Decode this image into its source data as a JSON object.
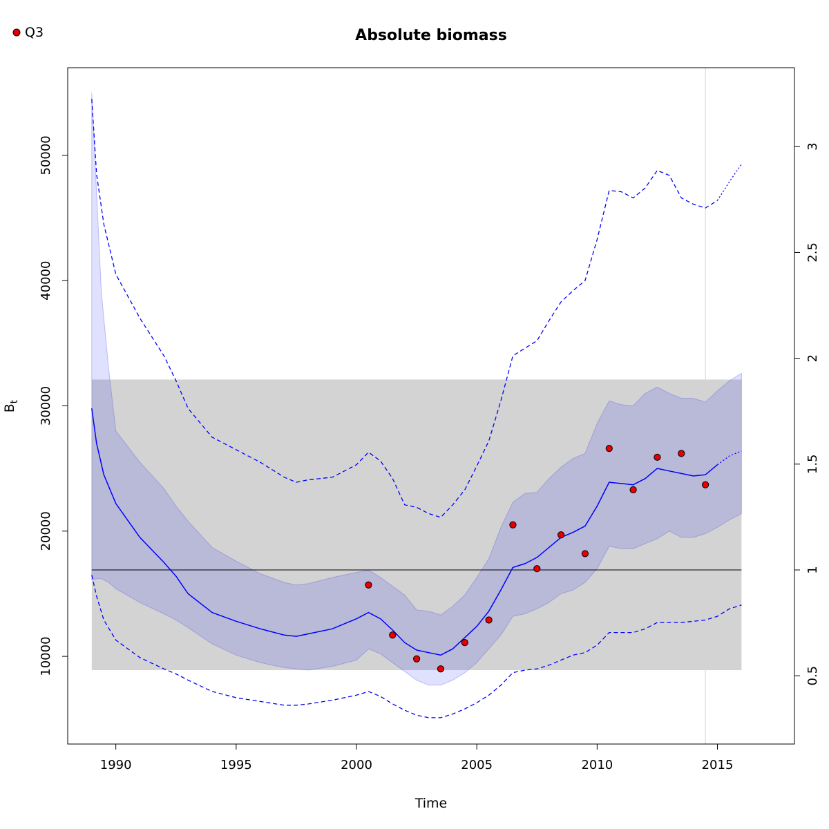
{
  "chart_data": {
    "type": "line",
    "title": "Absolute biomass",
    "xlabel": "Time",
    "ylabel": "B",
    "ylabel_subscript": "t",
    "xlim": [
      1988.0,
      2018.2
    ],
    "ylim": [
      3000,
      57000
    ],
    "xticks": [
      1990,
      1995,
      2000,
      2005,
      2010,
      2015
    ],
    "yticks": [
      10000,
      20000,
      30000,
      40000,
      50000
    ],
    "secondary_axis": {
      "position": "right",
      "reference_value": 16900,
      "ticks": [
        0.5,
        1,
        1.5,
        2,
        2.5,
        3
      ],
      "tick_labels": [
        "0.5",
        "1",
        "1.5",
        "2",
        "2.5",
        "3"
      ]
    },
    "reference_line": {
      "value": 16900,
      "from": 1989,
      "to": 2016,
      "color": "#000000"
    },
    "reference_band": {
      "lower": 8900,
      "upper": 32100,
      "from": 1989,
      "to": 2016,
      "color": "#d3d3d3"
    },
    "vertical_line": {
      "x": 2014.5,
      "color": "#d3d3d3"
    },
    "legend": {
      "position": "top-left",
      "entries": [
        {
          "label": "Q3",
          "color": "#e60000"
        }
      ]
    },
    "series": [
      {
        "role": "estimate",
        "color": "#0000ff",
        "x": [
          1989.0,
          1989.2,
          1989.5,
          1990.0,
          1991.0,
          1992.0,
          1992.5,
          1993.0,
          1994.0,
          1995.0,
          1996.0,
          1997.0,
          1997.5,
          1998.0,
          1999.0,
          2000.0,
          2000.5,
          2001.0,
          2001.5,
          2002.0,
          2002.5,
          2003.0,
          2003.5,
          2004.0,
          2004.5,
          2005.0,
          2005.5,
          2006.0,
          2006.5,
          2007.0,
          2007.5,
          2008.0,
          2008.5,
          2009.0,
          2009.5,
          2010.0,
          2010.5,
          2011.0,
          2011.5,
          2012.0,
          2012.5,
          2013.0,
          2013.5,
          2014.0,
          2014.5,
          2015.0
        ],
        "y": [
          29800,
          27000,
          24500,
          22200,
          19500,
          17500,
          16400,
          15000,
          13500,
          12800,
          12200,
          11700,
          11600,
          11800,
          12200,
          13000,
          13500,
          13000,
          12100,
          11100,
          10500,
          10300,
          10100,
          10600,
          11500,
          12400,
          13600,
          15300,
          17100,
          17400,
          17900,
          18700,
          19500,
          19900,
          20400,
          22000,
          23900,
          23800,
          23700,
          24200,
          25000,
          24800,
          24600,
          24400,
          24500,
          25300
        ]
      },
      {
        "role": "forecast",
        "line": "dotted",
        "color": "#0000ff",
        "x": [
          2015.0,
          2015.5,
          2016.0
        ],
        "y": [
          25300,
          26000,
          26400
        ]
      },
      {
        "role": "ci_band",
        "color": "#0000ff",
        "x": [
          1989.0,
          1989.2,
          1989.4,
          1989.7,
          1990.0,
          1991.0,
          1992.0,
          1992.5,
          1993.0,
          1994.0,
          1995.0,
          1996.0,
          1997.0,
          1997.5,
          1998.0,
          1999.0,
          2000.0,
          2000.5,
          2001.0,
          2001.5,
          2002.0,
          2002.5,
          2003.0,
          2003.5,
          2004.0,
          2004.5,
          2005.0,
          2005.5,
          2006.0,
          2006.5,
          2007.0,
          2007.5,
          2008.0,
          2008.5,
          2009.0,
          2009.5,
          2010.0,
          2010.5,
          2011.0,
          2011.5,
          2012.0,
          2012.5,
          2013.0,
          2013.5,
          2014.0,
          2014.5,
          2015.0,
          2015.5,
          2016.0
        ],
        "lower": [
          16100,
          16200,
          16200,
          15900,
          15400,
          14300,
          13400,
          12900,
          12300,
          11000,
          10100,
          9500,
          9100,
          9000,
          8900,
          9200,
          9700,
          10600,
          10200,
          9500,
          8800,
          8100,
          7700,
          7700,
          8100,
          8700,
          9500,
          10600,
          11700,
          13200,
          13400,
          13800,
          14300,
          15000,
          15300,
          15900,
          17000,
          18800,
          18600,
          18600,
          19000,
          19400,
          20000,
          19500,
          19500,
          19800,
          20300,
          20900,
          21400
        ],
        "upper": [
          55000,
          47000,
          39000,
          33000,
          28000,
          25500,
          23400,
          22000,
          20800,
          18700,
          17600,
          16600,
          15900,
          15700,
          15800,
          16300,
          16700,
          16900,
          16300,
          15600,
          14900,
          13700,
          13600,
          13300,
          14000,
          14900,
          16300,
          17800,
          20300,
          22300,
          23000,
          23100,
          24200,
          25100,
          25800,
          26200,
          28600,
          30400,
          30100,
          30000,
          31000,
          31500,
          31000,
          30600,
          30600,
          30300,
          31200,
          32000,
          32600
        ]
      },
      {
        "role": "upper_bound",
        "line": "dashed",
        "color": "#0000ff",
        "x": [
          1989.0,
          1989.2,
          1989.5,
          1990.0,
          1991.0,
          1992.0,
          1992.5,
          1993.0,
          1994.0,
          1995.0,
          1996.0,
          1997.0,
          1997.5,
          1998.0,
          1999.0,
          2000.0,
          2000.5,
          2001.0,
          2001.5,
          2002.0,
          2002.5,
          2003.0,
          2003.5,
          2004.0,
          2004.5,
          2005.0,
          2005.5,
          2006.0,
          2006.5,
          2007.0,
          2007.5,
          2008.0,
          2008.5,
          2009.0,
          2009.5,
          2010.0,
          2010.5,
          2011.0,
          2011.5,
          2012.0,
          2012.5,
          2013.0,
          2013.5,
          2014.0,
          2014.5,
          2015.0
        ],
        "y": [
          54500,
          48500,
          44500,
          40500,
          37000,
          34000,
          32000,
          29800,
          27500,
          26500,
          25500,
          24300,
          23900,
          24100,
          24300,
          25300,
          26300,
          25600,
          24200,
          22100,
          21900,
          21400,
          21100,
          22100,
          23300,
          25200,
          27200,
          30400,
          34000,
          34600,
          35200,
          36800,
          38300,
          39200,
          40000,
          43300,
          47200,
          47100,
          46600,
          47400,
          48800,
          48400,
          46600,
          46100,
          45800,
          46400
        ]
      },
      {
        "role": "upper_bound_forecast",
        "line": "dotted",
        "color": "#0000ff",
        "x": [
          2015.0,
          2015.5,
          2016.0
        ],
        "y": [
          46400,
          47900,
          49300
        ]
      },
      {
        "role": "lower_bound",
        "line": "dashed",
        "color": "#0000ff",
        "x": [
          1989.0,
          1989.2,
          1989.5,
          1990.0,
          1991.0,
          1992.0,
          1992.5,
          1993.0,
          1994.0,
          1995.0,
          1996.0,
          1997.0,
          1997.5,
          1998.0,
          1999.0,
          2000.0,
          2000.5,
          2001.0,
          2001.5,
          2002.0,
          2002.5,
          2003.0,
          2003.5,
          2004.0,
          2004.5,
          2005.0,
          2005.5,
          2006.0,
          2006.5,
          2007.0,
          2007.5,
          2008.0,
          2008.5,
          2009.0,
          2009.5,
          2010.0,
          2010.5,
          2011.0,
          2011.5,
          2012.0,
          2012.5,
          2013.0,
          2013.5,
          2014.0,
          2014.5,
          2015.0,
          2015.5,
          2016.0
        ],
        "y": [
          16500,
          14800,
          12900,
          11300,
          9900,
          9000,
          8600,
          8100,
          7200,
          6700,
          6400,
          6100,
          6100,
          6200,
          6500,
          6900,
          7200,
          6800,
          6200,
          5700,
          5300,
          5100,
          5100,
          5400,
          5800,
          6300,
          6900,
          7700,
          8700,
          8900,
          9000,
          9300,
          9700,
          10100,
          10300,
          10900,
          11900,
          11900,
          11900,
          12200,
          12700,
          12700,
          12700,
          12800,
          12900,
          13200,
          13800,
          14100
        ]
      }
    ],
    "points": {
      "label": "Q3",
      "color": "#e60000",
      "x": [
        2000.5,
        2001.5,
        2002.5,
        2003.5,
        2004.5,
        2005.5,
        2006.5,
        2007.5,
        2008.5,
        2009.5,
        2010.5,
        2011.5,
        2012.5,
        2013.5,
        2014.5
      ],
      "y": [
        15700,
        11700,
        9800,
        9000,
        11100,
        12900,
        20500,
        17000,
        19700,
        18200,
        26600,
        23300,
        25900,
        26200,
        23700
      ]
    }
  }
}
